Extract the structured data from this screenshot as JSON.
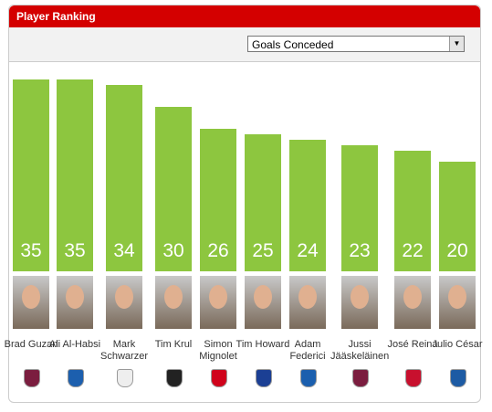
{
  "header": {
    "title": "Player Ranking"
  },
  "selector": "Goals Conceded",
  "chart_data": {
    "type": "bar",
    "categories": [
      "Brad Guzan",
      "Ali Al-Habsi",
      "Mark Schwarzer",
      "Tim Krul",
      "Simon Mignolet",
      "Tim Howard",
      "Adam Federici",
      "Jussi Jääskeläinen",
      "José Reina",
      "Julio César"
    ],
    "values": [
      35,
      35,
      34,
      30,
      26,
      25,
      24,
      23,
      22,
      20
    ],
    "color": "#8dc63f"
  }
}
